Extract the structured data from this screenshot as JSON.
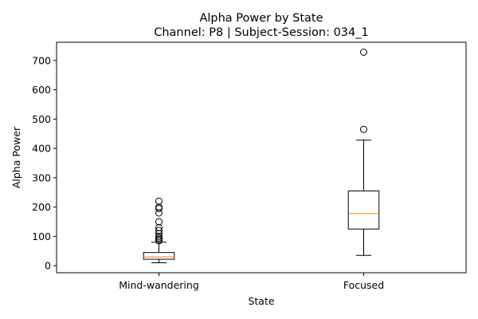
{
  "chart_data": {
    "type": "box",
    "title": "Alpha Power by State",
    "subtitle": "Channel: P8 | Subject-Session: 034_1",
    "xlabel": "State",
    "ylabel": "Alpha Power",
    "ylim": [
      -24,
      762
    ],
    "yticks": [
      0,
      100,
      200,
      300,
      400,
      500,
      600,
      700
    ],
    "grid": false,
    "categories": [
      "Mind-wandering",
      "Focused"
    ],
    "boxes": [
      {
        "category": "Mind-wandering",
        "whisker_low": 10,
        "q1": 22,
        "median": 30,
        "q3": 45,
        "whisker_high": 80,
        "outliers": [
          85,
          90,
          95,
          100,
          110,
          120,
          130,
          150,
          180,
          195,
          200,
          220
        ]
      },
      {
        "category": "Focused",
        "whisker_low": 35,
        "q1": 125,
        "median": 178,
        "q3": 255,
        "whisker_high": 428,
        "outliers": [
          465,
          728
        ]
      }
    ],
    "colors": {
      "box": "#000000",
      "median": "#ff7f0e",
      "outlier": "#000000"
    }
  }
}
